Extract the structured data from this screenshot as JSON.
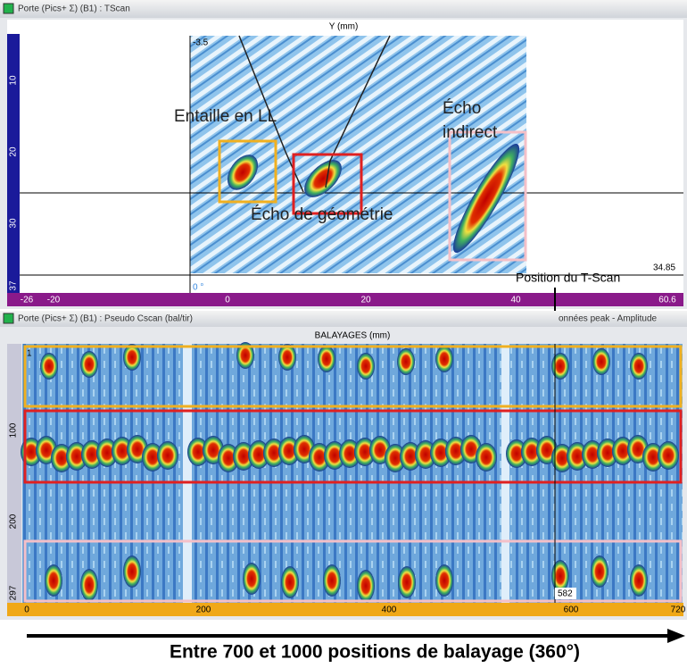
{
  "top_panel": {
    "title": "Porte (Pics+ Σ) (B1) : TScan",
    "axis_title": "Y (mm)",
    "corner_top": "-3.5",
    "corner_bottom": "34.85",
    "left_ticks": [
      "10",
      "20",
      "30",
      "37"
    ],
    "bottom_ticks": [
      "-26",
      "-20",
      "0",
      "20",
      "40",
      "60.6"
    ],
    "angle_label": "0 °",
    "annotations": {
      "notch": "Entaille en LL",
      "indirect_line1": "Écho",
      "indirect_line2": "indirect",
      "geometry": "Écho de géométrie"
    }
  },
  "cursor_label": "Position du T-Scan",
  "bottom_panel": {
    "title": "Porte (Pics+ Σ) (B1) : Pseudo Cscan (bal/tir)",
    "title_right": "onnées peak - Amplitude",
    "axis_title": "BALAYAGES (mm)",
    "corner_top": "1",
    "left_ticks": [
      "100",
      "200",
      "297"
    ],
    "cursor_value": "582",
    "bottom_ticks": [
      "0",
      "200",
      "400",
      "600",
      "720"
    ]
  },
  "caption": "Entre 700 et 1000 positions de balayage (360°)"
}
